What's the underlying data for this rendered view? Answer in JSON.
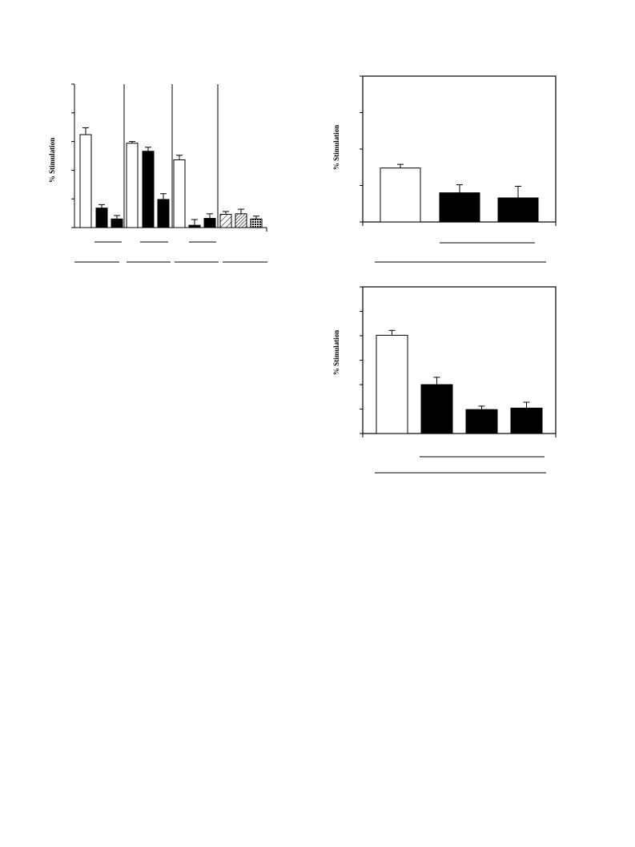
{
  "chart_data": [
    {
      "id": "panel-a",
      "type": "bar",
      "ylabel": "% Stimulation",
      "xlabel": "",
      "ylim": [
        0,
        250
      ],
      "yticks": [
        0,
        50,
        100,
        150,
        200,
        250
      ],
      "group_dividers_after": [
        3,
        6,
        8
      ],
      "bars": [
        {
          "value": 162,
          "error": 12,
          "fill": "white"
        },
        {
          "value": 34,
          "error": 6,
          "fill": "black"
        },
        {
          "value": 15,
          "error": 6,
          "fill": "black"
        },
        {
          "value": 147,
          "error": 3,
          "fill": "white"
        },
        {
          "value": 133,
          "error": 7,
          "fill": "black"
        },
        {
          "value": 49,
          "error": 10,
          "fill": "black"
        },
        {
          "value": 118,
          "error": 8,
          "fill": "white"
        },
        {
          "value": 4,
          "error": 10,
          "fill": "black"
        },
        {
          "value": 16,
          "error": 8,
          "fill": "black"
        },
        {
          "value": 23,
          "error": 5,
          "fill": "hatch-light"
        },
        {
          "value": 24,
          "error": 8,
          "fill": "hatch-dense"
        },
        {
          "value": 15,
          "error": 5,
          "fill": "crosshatch"
        }
      ],
      "underline_groups": [
        [
          1,
          2
        ],
        [
          4,
          5
        ],
        [
          7,
          8
        ]
      ],
      "bottom_groups": [
        [
          0,
          2
        ],
        [
          3,
          5
        ],
        [
          6,
          8
        ],
        [
          9,
          11
        ]
      ]
    },
    {
      "id": "panel-b",
      "type": "bar",
      "ylabel": "% Stimulation",
      "xlabel": "",
      "ylim": [
        0,
        200
      ],
      "yticks": [
        0,
        50,
        100,
        150,
        200
      ],
      "boxed": true,
      "bars": [
        {
          "value": 74,
          "error": 5,
          "fill": "white"
        },
        {
          "value": 40,
          "error": 11,
          "fill": "black"
        },
        {
          "value": 33,
          "error": 16,
          "fill": "black"
        }
      ],
      "underline_groups": [
        [
          1,
          2
        ]
      ],
      "bottom_groups": [
        [
          0,
          2
        ]
      ]
    },
    {
      "id": "panel-c",
      "type": "bar",
      "ylabel": "% Stimulation",
      "xlabel": "",
      "ylim": [
        0,
        300
      ],
      "yticks": [
        0,
        50,
        100,
        150,
        200,
        250,
        300
      ],
      "boxed": true,
      "bars": [
        {
          "value": 201,
          "error": 10,
          "fill": "white"
        },
        {
          "value": 100,
          "error": 15,
          "fill": "black"
        },
        {
          "value": 49,
          "error": 7,
          "fill": "black"
        },
        {
          "value": 52,
          "error": 12,
          "fill": "black"
        }
      ],
      "underline_groups": [
        [
          1,
          3
        ]
      ],
      "bottom_groups": [
        [
          0,
          3
        ]
      ]
    }
  ]
}
